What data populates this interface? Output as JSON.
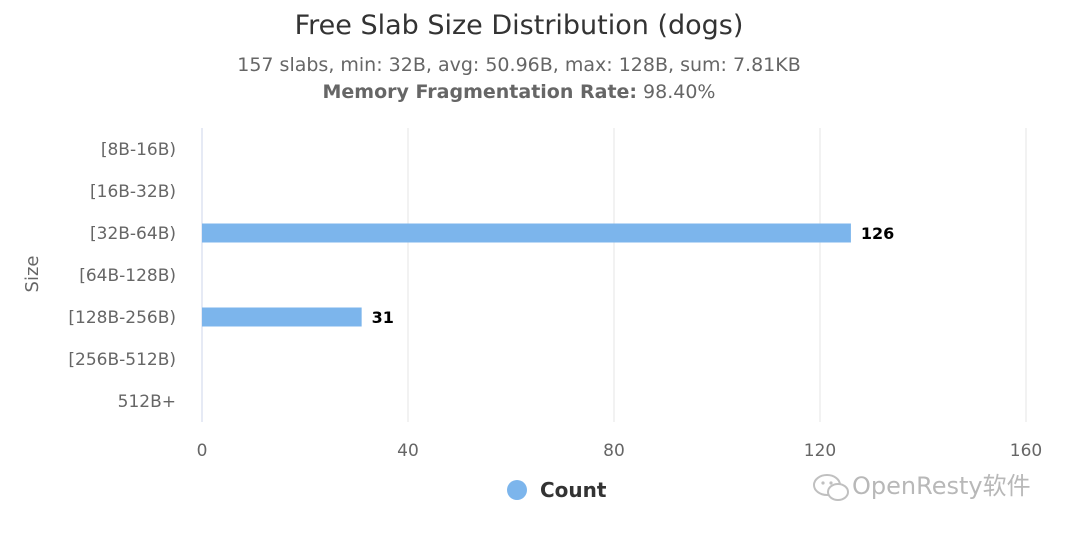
{
  "chart_data": {
    "type": "bar",
    "orientation": "horizontal",
    "title": "Free Slab Size Distribution (dogs)",
    "subtitle": "157 slabs, min: 32B, avg: 50.96B, max: 128B, sum: 7.81KB",
    "fragmentation_label": "Memory Fragmentation Rate:",
    "fragmentation_value": "98.40%",
    "ylabel": "Size",
    "xlabel": "",
    "categories": [
      "[8B-16B)",
      "[16B-32B)",
      "[32B-64B)",
      "[64B-128B)",
      "[128B-256B)",
      "[256B-512B)",
      "512B+"
    ],
    "series": [
      {
        "name": "Count",
        "values": [
          0,
          0,
          126,
          0,
          31,
          0,
          0
        ],
        "color": "#7cb5ec"
      }
    ],
    "xlim": [
      0,
      160
    ],
    "x_ticks": [
      0,
      40,
      80,
      120,
      160
    ],
    "grid": true,
    "legend_position": "bottom-center",
    "data_labels_shown_for_nonzero": true
  },
  "watermark": {
    "text": "OpenResty软件",
    "icon": "wechat-icon"
  },
  "colors": {
    "bar": "#7cb5ec",
    "grid": "#e6e6e6",
    "axis_line": "#ccd6eb"
  }
}
